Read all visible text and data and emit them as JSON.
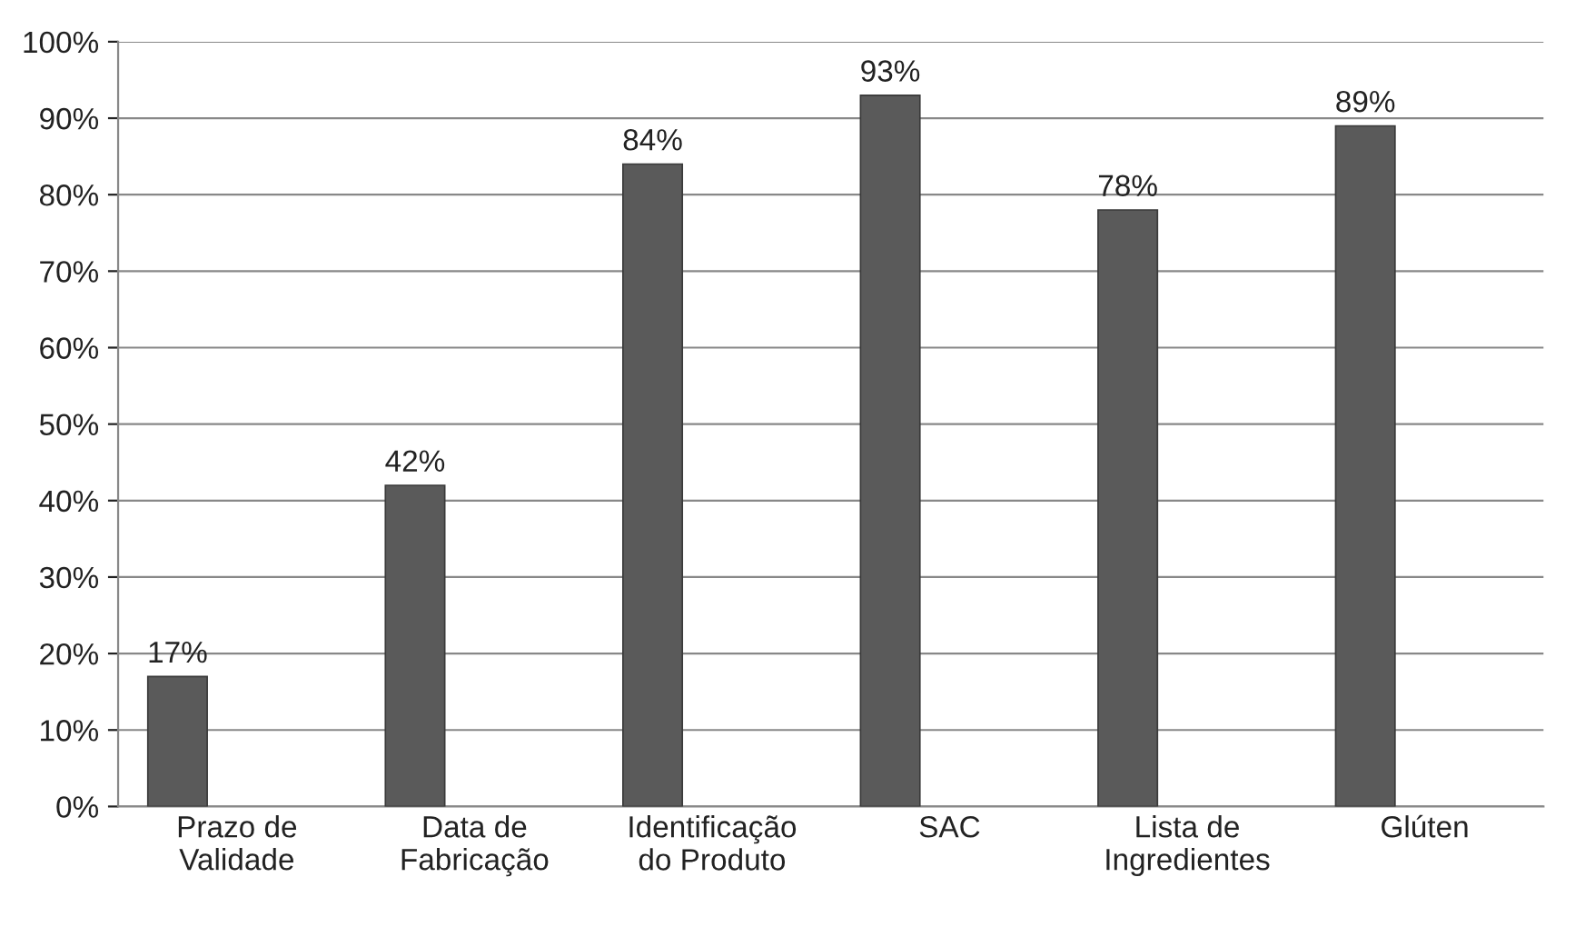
{
  "chart_data": {
    "type": "bar",
    "categories": [
      "Prazo de\nValidade",
      "Data de\nFabricação",
      "Identificação\ndo Produto",
      "SAC",
      "Lista de\nIngredientes",
      "Glúten"
    ],
    "values": [
      17,
      42,
      84,
      93,
      78,
      89
    ],
    "value_labels": [
      "17%",
      "42%",
      "84%",
      "93%",
      "78%",
      "89%"
    ],
    "color": "#5a5a5a",
    "ylim": [
      0,
      100
    ],
    "yticks": [
      {
        "value": 0,
        "label": "0%"
      },
      {
        "value": 10,
        "label": "10%"
      },
      {
        "value": 20,
        "label": "20%"
      },
      {
        "value": 30,
        "label": "30%"
      },
      {
        "value": 40,
        "label": "40%"
      },
      {
        "value": 50,
        "label": "50%"
      },
      {
        "value": 60,
        "label": "60%"
      },
      {
        "value": 70,
        "label": "70%"
      },
      {
        "value": 80,
        "label": "80%"
      },
      {
        "value": 90,
        "label": "90%"
      },
      {
        "value": 100,
        "label": "100%"
      }
    ],
    "grid": "y"
  }
}
